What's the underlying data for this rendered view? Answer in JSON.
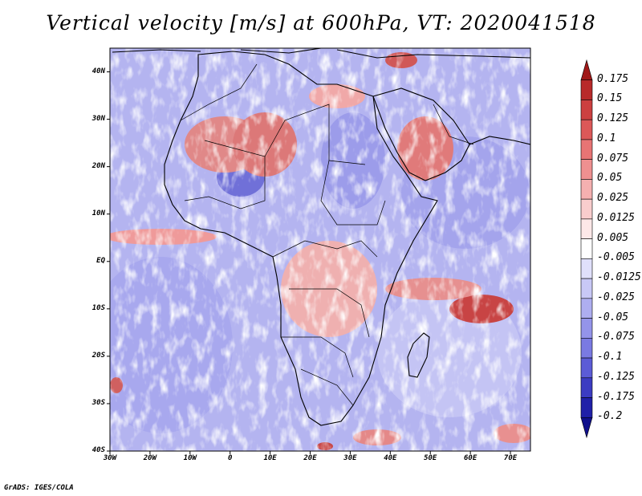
{
  "title": "Vertical velocity [m/s] at 600hPa, VT: 2020041518",
  "credit": "GrADS: IGES/COLA",
  "map": {
    "lon_min": -30,
    "lon_max": 75,
    "lat_min": -40,
    "lat_max": 45,
    "lat_labels": [
      {
        "lat": 40,
        "text": "40N"
      },
      {
        "lat": 30,
        "text": "30N"
      },
      {
        "lat": 20,
        "text": "20N"
      },
      {
        "lat": 10,
        "text": "10N"
      },
      {
        "lat": 0,
        "text": "EQ"
      },
      {
        "lat": -10,
        "text": "10S"
      },
      {
        "lat": -20,
        "text": "20S"
      },
      {
        "lat": -30,
        "text": "30S"
      },
      {
        "lat": -40,
        "text": "40S"
      }
    ],
    "lon_labels": [
      {
        "lon": -30,
        "text": "30W"
      },
      {
        "lon": -20,
        "text": "20W"
      },
      {
        "lon": -10,
        "text": "10W"
      },
      {
        "lon": 0,
        "text": "0"
      },
      {
        "lon": 10,
        "text": "10E"
      },
      {
        "lon": 20,
        "text": "20E"
      },
      {
        "lon": 30,
        "text": "30E"
      },
      {
        "lon": 40,
        "text": "40E"
      },
      {
        "lon": 50,
        "text": "50E"
      },
      {
        "lon": 60,
        "text": "60E"
      },
      {
        "lon": 70,
        "text": "70E"
      }
    ]
  },
  "colorbar": {
    "labels": [
      "0.175",
      "0.15",
      "0.125",
      "0.1",
      "0.075",
      "0.05",
      "0.025",
      "0.0125",
      "0.005",
      "-0.005",
      "-0.0125",
      "-0.025",
      "-0.05",
      "-0.075",
      "-0.1",
      "-0.125",
      "-0.175",
      "-0.2"
    ],
    "colors": [
      "#a01818",
      "#b82a2a",
      "#cc4040",
      "#dc5858",
      "#e87474",
      "#ef9090",
      "#f5b0b0",
      "#f9cdcd",
      "#fde8e8",
      "#ffffff",
      "#e0e0fb",
      "#c8c8f6",
      "#aeaef0",
      "#9494ea",
      "#7a7ae2",
      "#5c5cd6",
      "#3c3cc2",
      "#2020a8",
      "#10108c"
    ]
  }
}
